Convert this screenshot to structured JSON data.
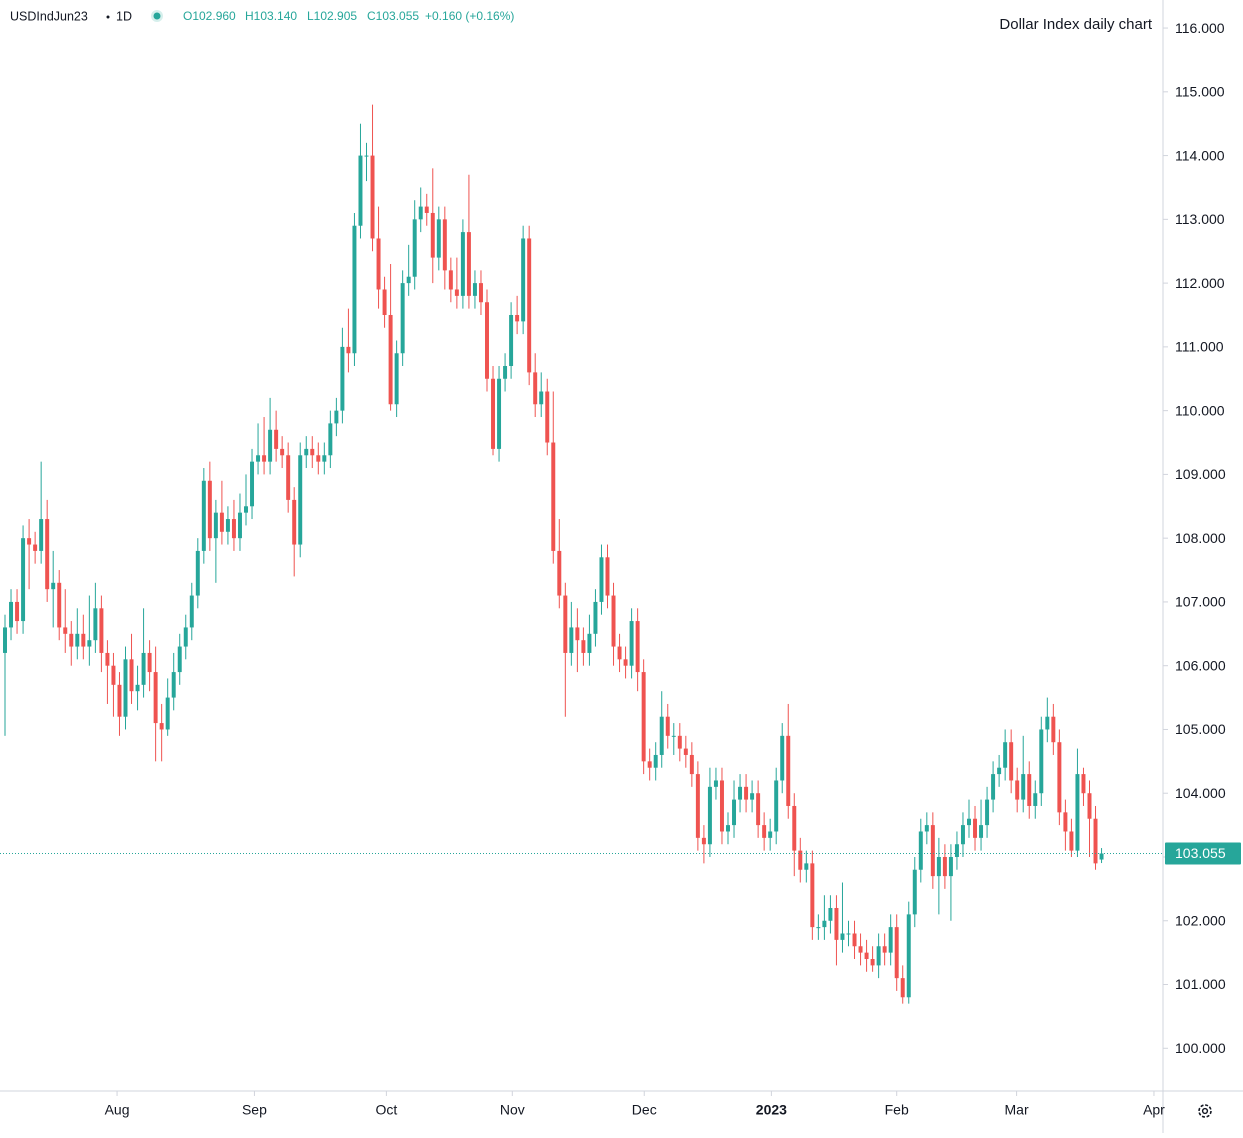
{
  "header": {
    "symbol": "USDIndJun23",
    "interval": "1D",
    "ohlc_text": [
      "O102.960",
      "H103.140",
      "L102.905",
      "C103.055",
      "+0.160 (+0.16%)"
    ]
  },
  "chart_data": {
    "type": "candlestick",
    "annotation": "Dollar Index daily chart",
    "up_color": "#26a69a",
    "down_color": "#ef5350",
    "last_price": 103.055,
    "open": [
      106.2,
      106.6,
      107.0,
      106.7,
      108.0,
      107.9,
      107.8,
      108.3,
      107.2,
      107.3,
      106.6,
      106.5,
      106.3,
      106.5,
      106.3,
      106.4,
      106.9,
      106.2,
      106.0,
      105.7,
      105.2,
      106.1,
      105.6,
      105.7,
      106.2,
      105.9,
      105.1,
      105.0,
      105.5,
      105.9,
      106.3,
      106.6,
      107.1,
      107.8,
      108.9,
      108.0,
      108.4,
      108.1,
      108.3,
      108.0,
      108.4,
      108.5,
      109.2,
      109.3,
      109.2,
      109.7,
      109.4,
      109.3,
      108.6,
      107.9,
      109.3,
      109.4,
      109.3,
      109.2,
      109.3,
      109.8,
      110.0,
      111.0,
      110.9,
      112.9,
      114.0,
      114.0,
      112.7,
      111.9,
      111.5,
      110.1,
      110.9,
      112.0,
      112.1,
      113.0,
      113.2,
      113.1,
      112.4,
      113.0,
      112.2,
      111.9,
      111.8,
      112.8,
      111.8,
      112.0,
      111.7,
      110.5,
      109.4,
      110.5,
      110.7,
      111.5,
      111.4,
      112.7,
      110.6,
      110.1,
      110.3,
      109.5,
      107.8,
      107.1,
      106.2,
      106.6,
      106.4,
      106.2,
      106.5,
      107.0,
      107.7,
      107.1,
      106.3,
      106.1,
      106.0,
      106.7,
      105.9,
      104.5,
      104.4,
      104.6,
      105.2,
      104.9,
      104.9,
      104.7,
      104.6,
      104.3,
      103.3,
      103.2,
      104.1,
      104.2,
      103.4,
      103.5,
      103.9,
      104.1,
      103.9,
      104.0,
      103.5,
      103.3,
      103.4,
      104.2,
      104.9,
      103.8,
      103.1,
      102.8,
      102.9,
      101.9,
      101.9,
      102.0,
      102.2,
      101.7,
      101.8,
      101.8,
      101.6,
      101.5,
      101.4,
      101.3,
      101.6,
      101.5,
      101.9,
      101.1,
      100.8,
      102.1,
      102.8,
      103.4,
      103.5,
      102.7,
      103.0,
      102.7,
      103.0,
      103.2,
      103.5,
      103.6,
      103.3,
      103.5,
      103.9,
      104.3,
      104.4,
      104.8,
      104.2,
      103.9,
      104.3,
      103.8,
      104.0,
      105.0,
      105.2,
      104.8,
      103.7,
      103.4,
      103.1,
      104.3,
      104.0,
      103.6,
      102.96
    ],
    "high": [
      106.8,
      107.2,
      107.2,
      108.2,
      108.3,
      108.1,
      109.2,
      108.6,
      107.8,
      107.5,
      107.2,
      106.7,
      106.9,
      106.8,
      107.1,
      107.3,
      107.1,
      106.4,
      106.2,
      105.9,
      106.3,
      106.5,
      106.0,
      106.9,
      106.4,
      106.3,
      105.4,
      105.8,
      106.2,
      106.5,
      106.8,
      107.3,
      108.0,
      109.1,
      109.2,
      108.6,
      108.9,
      108.5,
      108.6,
      108.7,
      109.0,
      109.4,
      109.8,
      109.9,
      110.2,
      110.0,
      109.6,
      109.5,
      108.8,
      109.5,
      109.6,
      109.6,
      109.5,
      109.5,
      110.0,
      110.2,
      111.3,
      111.6,
      113.1,
      114.5,
      114.2,
      114.8,
      113.2,
      112.1,
      112.3,
      111.1,
      112.2,
      112.6,
      113.3,
      113.5,
      113.4,
      113.8,
      113.2,
      113.2,
      112.4,
      112.4,
      113.0,
      113.7,
      112.2,
      112.2,
      111.9,
      110.7,
      110.7,
      110.9,
      111.7,
      111.8,
      112.9,
      112.9,
      110.9,
      110.6,
      110.5,
      110.3,
      108.3,
      107.3,
      107.0,
      106.9,
      106.6,
      106.8,
      107.2,
      107.9,
      107.9,
      107.3,
      106.5,
      106.3,
      106.9,
      106.9,
      106.1,
      104.7,
      104.8,
      105.6,
      105.4,
      105.1,
      105.1,
      104.9,
      104.8,
      104.5,
      103.5,
      104.4,
      104.4,
      104.4,
      103.7,
      104.2,
      104.3,
      104.3,
      104.2,
      104.2,
      103.7,
      103.6,
      104.4,
      105.1,
      105.4,
      104.0,
      103.3,
      103.1,
      103.1,
      102.1,
      102.4,
      102.4,
      102.4,
      102.6,
      102.0,
      102.0,
      101.8,
      101.7,
      101.6,
      101.8,
      101.8,
      102.1,
      102.1,
      101.3,
      102.3,
      103.0,
      103.6,
      103.7,
      103.7,
      103.3,
      103.2,
      103.2,
      103.4,
      103.7,
      103.9,
      103.8,
      103.9,
      104.1,
      104.5,
      104.6,
      105.0,
      105.0,
      104.4,
      104.9,
      104.5,
      104.2,
      105.2,
      105.5,
      105.4,
      105.0,
      103.9,
      103.6,
      104.7,
      104.4,
      104.2,
      103.8,
      103.14
    ],
    "low": [
      104.9,
      106.4,
      106.5,
      106.5,
      107.2,
      107.6,
      107.6,
      107.0,
      106.6,
      106.4,
      106.2,
      106.0,
      106.1,
      106.1,
      106.0,
      106.2,
      105.9,
      105.4,
      105.2,
      104.9,
      105.0,
      105.4,
      105.3,
      105.5,
      105.6,
      104.5,
      104.5,
      104.9,
      105.3,
      105.7,
      106.1,
      106.4,
      106.9,
      107.6,
      107.8,
      107.3,
      107.9,
      107.9,
      107.8,
      107.8,
      108.2,
      108.3,
      109.0,
      109.0,
      109.0,
      109.2,
      109.1,
      108.4,
      107.4,
      107.7,
      109.1,
      109.1,
      109.0,
      109.0,
      109.1,
      109.6,
      109.8,
      110.6,
      110.7,
      112.7,
      113.6,
      112.5,
      111.6,
      111.3,
      110.0,
      109.9,
      110.7,
      111.8,
      111.9,
      112.8,
      112.9,
      112.0,
      112.2,
      111.9,
      111.7,
      111.6,
      111.6,
      111.6,
      111.6,
      111.5,
      110.3,
      109.3,
      109.2,
      110.3,
      110.5,
      111.2,
      111.2,
      110.4,
      109.9,
      109.9,
      109.3,
      107.6,
      106.9,
      105.2,
      106.0,
      105.9,
      106.0,
      106.0,
      106.3,
      106.8,
      106.9,
      106.0,
      105.9,
      105.8,
      105.8,
      105.6,
      104.3,
      104.2,
      104.2,
      104.4,
      104.7,
      104.6,
      104.5,
      104.4,
      104.1,
      103.1,
      102.9,
      103.0,
      103.9,
      103.2,
      103.2,
      103.3,
      103.7,
      103.7,
      103.7,
      103.3,
      103.1,
      103.1,
      103.2,
      104.0,
      103.6,
      102.7,
      102.6,
      102.6,
      101.7,
      101.7,
      101.7,
      101.8,
      101.3,
      101.5,
      101.6,
      101.4,
      101.3,
      101.2,
      101.2,
      101.1,
      101.3,
      101.3,
      100.9,
      100.7,
      100.7,
      101.9,
      102.6,
      103.2,
      102.5,
      102.1,
      102.5,
      102.0,
      102.8,
      103.0,
      103.3,
      103.1,
      103.1,
      103.3,
      103.7,
      104.1,
      104.2,
      104.0,
      103.7,
      103.7,
      103.6,
      103.6,
      103.8,
      104.8,
      104.6,
      103.5,
      103.1,
      103.0,
      103.0,
      103.8,
      103.0,
      102.8,
      102.905
    ],
    "close": [
      106.6,
      107.0,
      106.7,
      108.0,
      107.9,
      107.8,
      108.3,
      107.2,
      107.3,
      106.6,
      106.5,
      106.3,
      106.5,
      106.3,
      106.4,
      106.9,
      106.2,
      106.0,
      105.7,
      105.2,
      106.1,
      105.6,
      105.7,
      106.2,
      105.9,
      105.1,
      105.0,
      105.5,
      105.9,
      106.3,
      106.6,
      107.1,
      107.8,
      108.9,
      108.0,
      108.4,
      108.1,
      108.3,
      108.0,
      108.4,
      108.5,
      109.2,
      109.3,
      109.2,
      109.7,
      109.4,
      109.3,
      108.6,
      107.9,
      109.3,
      109.4,
      109.3,
      109.2,
      109.3,
      109.8,
      110.0,
      111.0,
      110.9,
      112.9,
      114.0,
      114.0,
      112.7,
      111.9,
      111.5,
      110.1,
      110.9,
      112.0,
      112.1,
      113.0,
      113.2,
      113.1,
      112.4,
      113.0,
      112.2,
      111.9,
      111.8,
      112.8,
      111.8,
      112.0,
      111.7,
      110.5,
      109.4,
      110.5,
      110.7,
      111.5,
      111.4,
      112.7,
      110.6,
      110.1,
      110.3,
      109.5,
      107.8,
      107.1,
      106.2,
      106.6,
      106.4,
      106.2,
      106.5,
      107.0,
      107.7,
      107.1,
      106.3,
      106.1,
      106.0,
      106.7,
      105.9,
      104.5,
      104.4,
      104.6,
      105.2,
      104.9,
      104.9,
      104.7,
      104.6,
      104.3,
      103.3,
      103.2,
      104.1,
      104.2,
      103.4,
      103.5,
      103.9,
      104.1,
      103.9,
      104.0,
      103.5,
      103.3,
      103.4,
      104.2,
      104.9,
      103.8,
      103.1,
      102.8,
      102.9,
      101.9,
      101.9,
      102.0,
      102.2,
      101.7,
      101.8,
      101.8,
      101.6,
      101.5,
      101.4,
      101.3,
      101.6,
      101.5,
      101.9,
      101.1,
      100.8,
      102.1,
      102.8,
      103.4,
      103.5,
      102.7,
      103.0,
      102.7,
      103.0,
      103.2,
      103.5,
      103.6,
      103.3,
      103.5,
      103.9,
      104.3,
      104.4,
      104.8,
      104.2,
      103.9,
      104.3,
      103.8,
      104.0,
      105.0,
      105.2,
      104.8,
      103.7,
      103.4,
      103.1,
      104.3,
      104.0,
      103.6,
      102.9,
      103.055
    ],
    "xlim": [
      -0.83,
      192.2
    ],
    "xticks": [
      {
        "value": 18.6,
        "label": "Aug"
      },
      {
        "value": 41.4,
        "label": "Sep"
      },
      {
        "value": 63.3,
        "label": "Oct"
      },
      {
        "value": 84.2,
        "label": "Nov"
      },
      {
        "value": 106.1,
        "label": "Dec"
      },
      {
        "value": 127.2,
        "label": "2023"
      },
      {
        "value": 148.0,
        "label": "Feb"
      },
      {
        "value": 167.9,
        "label": "Mar"
      },
      {
        "value": 190.7,
        "label": "Apr"
      }
    ],
    "ylim": [
      99.33,
      116.44
    ],
    "yticks": [
      {
        "value": 100,
        "label": "100.000"
      },
      {
        "value": 101,
        "label": "101.000"
      },
      {
        "value": 102,
        "label": "102.000"
      },
      {
        "value": 103,
        "label": "103.000"
      },
      {
        "value": 104,
        "label": "104.000"
      },
      {
        "value": 105,
        "label": "105.000"
      },
      {
        "value": 106,
        "label": "106.000"
      },
      {
        "value": 107,
        "label": "107.000"
      },
      {
        "value": 108,
        "label": "108.000"
      },
      {
        "value": 109,
        "label": "109.000"
      },
      {
        "value": 110,
        "label": "110.000"
      },
      {
        "value": 111,
        "label": "111.000"
      },
      {
        "value": 112,
        "label": "112.000"
      },
      {
        "value": 113,
        "label": "113.000"
      },
      {
        "value": 114,
        "label": "114.000"
      },
      {
        "value": 115,
        "label": "115.000"
      },
      {
        "value": 116,
        "label": "116.000"
      }
    ],
    "grid": false
  }
}
